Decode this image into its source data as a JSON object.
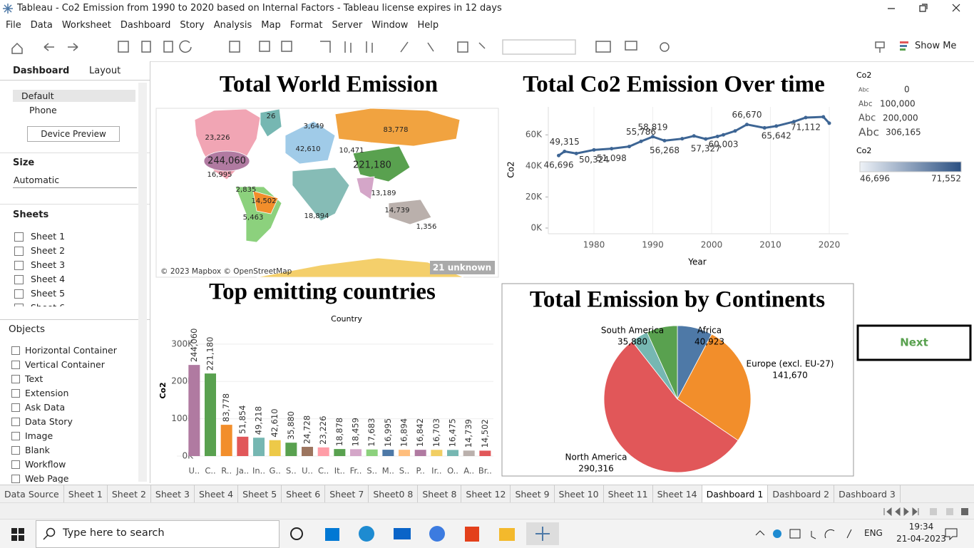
{
  "window": {
    "title": "Tableau - Co2 Emission from 1990 to 2020 based on Internal Factors - Tableau license expires in 12 days"
  },
  "menu": [
    "File",
    "Data",
    "Worksheet",
    "Dashboard",
    "Story",
    "Analysis",
    "Map",
    "Format",
    "Server",
    "Window",
    "Help"
  ],
  "toolbar": {
    "show_me": "Show Me"
  },
  "sidebar": {
    "tabs": [
      "Dashboard",
      "Layout"
    ],
    "devices": [
      "Default",
      "Phone"
    ],
    "device_preview": "Device Preview",
    "size_heading": "Size",
    "size_value": "Automatic",
    "sheets_heading": "Sheets",
    "sheets": [
      "Sheet 1",
      "Sheet 2",
      "Sheet 3",
      "Sheet 4",
      "Sheet 5",
      "Sheet 6"
    ],
    "objects_heading": "Objects",
    "objects": [
      "Horizontal Container",
      "Vertical Container",
      "Text",
      "Extension",
      "Ask Data",
      "Data Story",
      "Image",
      "Blank",
      "Workflow",
      "Web Page"
    ]
  },
  "dashboard": {
    "map": {
      "title": "Total World Emission",
      "labels": [
        "26",
        "83,778",
        "23,226",
        "244,060",
        "10,471",
        "221,180",
        "42,610",
        "3,649",
        "16,995",
        "14,502",
        "2,835",
        "5,463",
        "18,894",
        "13,189",
        "14,739",
        "1,356"
      ],
      "attribution": "© 2023 Mapbox © OpenStreetMap",
      "unknown": "21 unknown"
    },
    "size_legend": {
      "title": "Co2",
      "marker": "Abc",
      "values": [
        "0",
        "100,000",
        "200,000",
        "306,165"
      ]
    },
    "color_legend": {
      "title": "Co2",
      "min": "46,696",
      "max": "71,552"
    },
    "next_button": "Next"
  },
  "chart_data": [
    {
      "type": "line",
      "title": "Total Co2 Emission Over time",
      "x_label": "Year",
      "y_label": "Co2",
      "x": [
        1974,
        1975,
        1977,
        1980,
        1983,
        1986,
        1988,
        1990,
        1992,
        1995,
        1997,
        1999,
        2001,
        2002,
        2004,
        2006,
        2009,
        2011,
        2014,
        2016,
        2019,
        2020
      ],
      "values": [
        46696,
        49315,
        48000,
        50324,
        51098,
        52500,
        55786,
        58819,
        56268,
        57500,
        59300,
        57327,
        58973,
        60003,
        62500,
        66670,
        64500,
        65642,
        68500,
        71112,
        71552,
        67500
      ],
      "value_labels": [
        "46,696",
        "49,315",
        null,
        "50,324",
        "51,098",
        null,
        "55,786",
        "58,819",
        "56,268",
        null,
        null,
        "57,327",
        null,
        "60,003",
        null,
        "66,670",
        null,
        "65,642",
        null,
        "71,112",
        null,
        null
      ],
      "color": "#3d6594",
      "xlim": [
        1972,
        2024
      ],
      "xticks": [
        1980,
        1990,
        2000,
        2010,
        2020
      ],
      "ylim": [
        0,
        78000
      ],
      "yticks": [
        {
          "value": 0,
          "label": "0K"
        },
        {
          "value": 20000,
          "label": "20K"
        },
        {
          "value": 40000,
          "label": "40K"
        },
        {
          "value": 60000,
          "label": "60K"
        }
      ],
      "grid": true
    },
    {
      "type": "bar",
      "title": "Top emitting countries",
      "header": "Country",
      "y_label": "Co2",
      "categories": [
        "U..",
        "C..",
        "R..",
        "Ja..",
        "In..",
        "G..",
        "S..",
        "U..",
        "C..",
        "It..",
        "Fr..",
        "S..",
        "M..",
        "S..",
        "P..",
        "Ir..",
        "O..",
        "A..",
        "Br.."
      ],
      "values": [
        244060,
        221180,
        83778,
        51854,
        49218,
        42610,
        35880,
        24728,
        23226,
        18878,
        18459,
        17683,
        16995,
        16894,
        16842,
        16703,
        16475,
        14739,
        14502
      ],
      "value_labels": [
        "244,060",
        "221,180",
        "83,778",
        "51,854",
        "49,218",
        "42,610",
        "35,880",
        "24,728",
        "23,226",
        "18,878",
        "18,459",
        "17,683",
        "16,995",
        "16,894",
        "16,842",
        "16,703",
        "16,475",
        "14,739",
        "14,502"
      ],
      "colors": [
        "#b07aa1",
        "#59a14f",
        "#f28e2b",
        "#e15759",
        "#76b7b2",
        "#edc948",
        "#59a14f",
        "#9c755f",
        "#ff9da7",
        "#59a14f",
        "#d4a6c8",
        "#8cd17d",
        "#4e79a7",
        "#ffbe7d",
        "#b07aa1",
        "#f1ce63",
        "#76b7b2",
        "#bab0ac",
        "#e15759"
      ],
      "ylim": [
        0,
        334000
      ],
      "yticks": [
        {
          "value": 0,
          "label": "0K"
        },
        {
          "value": 100000,
          "label": "100K"
        },
        {
          "value": 200000,
          "label": "200K"
        },
        {
          "value": 300000,
          "label": "300K"
        }
      ],
      "grid": true
    },
    {
      "type": "pie",
      "title": "Total Emission by Continents",
      "categories": [
        "Africa",
        "Europe (excl. EU-27)",
        "North America",
        null,
        "South America"
      ],
      "values": [
        40923,
        141670,
        290316,
        20000,
        35880
      ],
      "value_labels": [
        "40,923",
        "141,670",
        "290,316",
        null,
        "35,880"
      ],
      "colors": [
        "#4e79a7",
        "#f28e2b",
        "#e15759",
        "#76b7b2",
        "#59a14f"
      ]
    }
  ],
  "tabs": [
    "Data Source",
    "Sheet 1",
    "Sheet 2",
    "Sheet 3",
    "Sheet 4",
    "Sheet 5",
    "Sheet 6",
    "Sheet 7",
    "Sheet0 8",
    "Sheet 8",
    "Sheet 12",
    "Sheet 9",
    "Sheet 10",
    "Sheet 11",
    "Sheet 14",
    "Dashboard 1",
    "Dashboard 2",
    "Dashboard 3"
  ],
  "active_tab": "Dashboard 1",
  "taskbar": {
    "search": "Type here to search",
    "lang": "ENG",
    "time": "19:34",
    "date": "21-04-2023"
  }
}
